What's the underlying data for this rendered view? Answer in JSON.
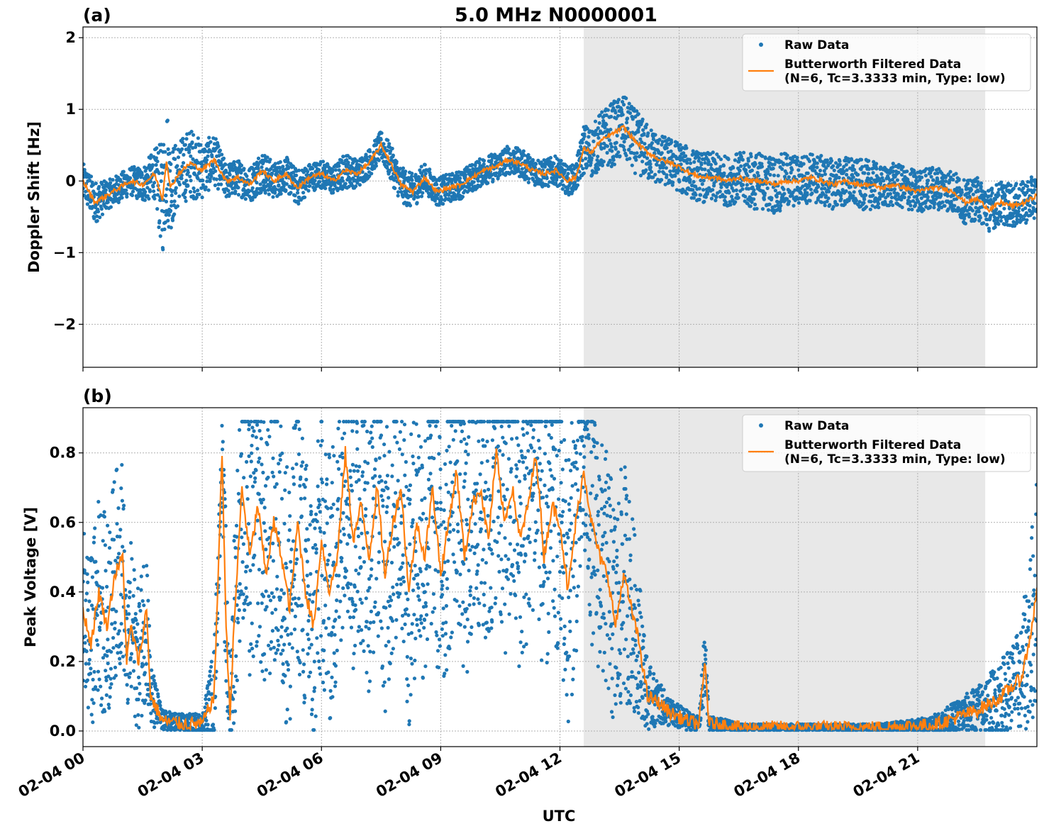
{
  "figure": {
    "title": "5.0 MHz N0000001",
    "xlabel": "UTC"
  },
  "colors": {
    "raw": "#1f77b4",
    "filtered": "#ff7f0e",
    "night_shade": "#e8e8e8",
    "grid": "#b0b0b0"
  },
  "legend": {
    "raw_label": "Raw Data",
    "filtered_label_line1": "Butterworth Filtered Data",
    "filtered_label_line2": "(N=6, Tc=3.3333 min, Type: low)"
  },
  "chart_data": [
    {
      "panel_label": "(a)",
      "type": "scatter",
      "ylabel": "Doppler Shift [Hz]",
      "xlim_hours": [
        0,
        24
      ],
      "ylim": [
        -2.6,
        2.15
      ],
      "yticks": [
        -2,
        -1,
        0,
        1,
        2
      ],
      "yticklabels": [
        "−2",
        "−1",
        "0",
        "1",
        "2"
      ],
      "xticks_hours": [
        0,
        3,
        6,
        9,
        12,
        15,
        18,
        21
      ],
      "xticklabels": [
        "02-04 00",
        "02-04 03",
        "02-04 06",
        "02-04 09",
        "02-04 12",
        "02-04 15",
        "02-04 18",
        "02-04 21"
      ],
      "grid": true,
      "legend_position": "top-right",
      "shaded_region_hours": [
        12.6,
        22.7
      ],
      "series": [
        {
          "name": "Butterworth Filtered Data (N=6, Tc=3.3333 min, Type: low)",
          "kind": "line",
          "x_hours": [
            0,
            0.3,
            0.6,
            0.9,
            1.2,
            1.5,
            1.8,
            2.0,
            2.1,
            2.2,
            2.4,
            2.7,
            3.0,
            3.3,
            3.6,
            3.9,
            4.2,
            4.5,
            4.8,
            5.1,
            5.4,
            5.7,
            6.0,
            6.3,
            6.6,
            6.9,
            7.2,
            7.5,
            7.7,
            8.0,
            8.3,
            8.6,
            8.9,
            9.2,
            9.5,
            9.8,
            10.1,
            10.4,
            10.7,
            11.0,
            11.3,
            11.6,
            11.9,
            12.2,
            12.4,
            12.6,
            12.8,
            13.0,
            13.3,
            13.6,
            13.9,
            14.2,
            14.5,
            14.8,
            15.0,
            15.3,
            15.6,
            15.9,
            16.2,
            16.5,
            16.8,
            17.1,
            17.4,
            17.7,
            18.0,
            18.3,
            18.6,
            18.9,
            19.2,
            19.5,
            19.8,
            20.1,
            20.4,
            20.7,
            21.0,
            21.3,
            21.6,
            21.9,
            22.2,
            22.5,
            22.8,
            23.1,
            23.4,
            23.7,
            24.0
          ],
          "y": [
            0.0,
            -0.3,
            -0.2,
            -0.1,
            0.0,
            -0.05,
            0.1,
            -0.25,
            0.3,
            -0.1,
            0.1,
            0.25,
            0.15,
            0.3,
            0.0,
            0.05,
            -0.05,
            0.15,
            0.0,
            0.1,
            -0.1,
            0.05,
            0.1,
            0.0,
            0.15,
            0.1,
            0.25,
            0.5,
            0.3,
            -0.05,
            -0.15,
            0.05,
            -0.15,
            -0.1,
            -0.05,
            0.05,
            0.15,
            0.2,
            0.3,
            0.25,
            0.15,
            0.1,
            0.15,
            0.0,
            0.05,
            0.45,
            0.4,
            0.55,
            0.65,
            0.75,
            0.55,
            0.4,
            0.3,
            0.25,
            0.2,
            0.1,
            0.05,
            0.05,
            0.0,
            0.05,
            0.0,
            0.0,
            -0.05,
            0.0,
            0.0,
            0.05,
            0.0,
            -0.05,
            0.0,
            -0.05,
            -0.05,
            -0.1,
            -0.05,
            -0.1,
            -0.15,
            -0.1,
            -0.1,
            -0.15,
            -0.3,
            -0.25,
            -0.4,
            -0.3,
            -0.35,
            -0.3,
            -0.2
          ]
        },
        {
          "name": "Raw Data",
          "kind": "band",
          "x_hours": [
            0,
            0.3,
            0.6,
            0.9,
            1.2,
            1.5,
            1.8,
            2.0,
            2.1,
            2.2,
            2.4,
            2.7,
            3.0,
            3.3,
            3.6,
            3.9,
            4.2,
            4.5,
            4.8,
            5.1,
            5.4,
            5.7,
            6.0,
            6.3,
            6.6,
            6.9,
            7.2,
            7.5,
            7.7,
            8.0,
            8.3,
            8.6,
            8.9,
            9.2,
            9.5,
            9.8,
            10.1,
            10.4,
            10.7,
            11.0,
            11.3,
            11.6,
            11.9,
            12.2,
            12.4,
            12.6,
            12.8,
            13.0,
            13.3,
            13.6,
            13.9,
            14.2,
            14.5,
            14.8,
            15.0,
            15.3,
            15.6,
            15.9,
            16.2,
            16.5,
            16.8,
            17.1,
            17.4,
            17.7,
            18.0,
            18.3,
            18.6,
            18.9,
            19.2,
            19.5,
            19.8,
            20.1,
            20.4,
            20.7,
            21.0,
            21.3,
            21.6,
            21.9,
            22.2,
            22.5,
            22.8,
            23.1,
            23.4,
            23.7,
            24.0
          ],
          "spread": [
            0.25,
            0.3,
            0.2,
            0.2,
            0.2,
            0.25,
            0.35,
            0.8,
            0.9,
            0.6,
            0.45,
            0.5,
            0.4,
            0.35,
            0.25,
            0.25,
            0.25,
            0.3,
            0.25,
            0.25,
            0.25,
            0.2,
            0.2,
            0.2,
            0.25,
            0.2,
            0.2,
            0.2,
            0.25,
            0.25,
            0.25,
            0.2,
            0.2,
            0.2,
            0.2,
            0.2,
            0.2,
            0.2,
            0.2,
            0.2,
            0.2,
            0.2,
            0.2,
            0.2,
            0.2,
            0.35,
            0.35,
            0.4,
            0.45,
            0.45,
            0.45,
            0.4,
            0.35,
            0.35,
            0.35,
            0.35,
            0.35,
            0.35,
            0.35,
            0.35,
            0.4,
            0.4,
            0.4,
            0.4,
            0.35,
            0.35,
            0.35,
            0.35,
            0.35,
            0.35,
            0.35,
            0.3,
            0.3,
            0.3,
            0.3,
            0.3,
            0.3,
            0.3,
            0.3,
            0.3,
            0.3,
            0.3,
            0.3,
            0.3,
            0.3
          ]
        }
      ]
    },
    {
      "panel_label": "(b)",
      "type": "scatter",
      "ylabel": "Peak Voltage [V]",
      "xlim_hours": [
        0,
        24
      ],
      "ylim": [
        -0.045,
        0.93
      ],
      "yticks": [
        0.0,
        0.2,
        0.4,
        0.6,
        0.8
      ],
      "yticklabels": [
        "0.0",
        "0.2",
        "0.4",
        "0.6",
        "0.8"
      ],
      "xticks_hours": [
        0,
        3,
        6,
        9,
        12,
        15,
        18,
        21
      ],
      "xticklabels": [
        "02-04 00",
        "02-04 03",
        "02-04 06",
        "02-04 09",
        "02-04 12",
        "02-04 15",
        "02-04 18",
        "02-04 21"
      ],
      "grid": true,
      "legend_position": "top-right",
      "shaded_region_hours": [
        12.6,
        22.7
      ],
      "series": [
        {
          "name": "Butterworth Filtered Data (N=6, Tc=3.3333 min, Type: low)",
          "kind": "line",
          "x_hours": [
            0,
            0.2,
            0.4,
            0.6,
            0.8,
            1.0,
            1.1,
            1.2,
            1.4,
            1.6,
            1.7,
            2.0,
            2.5,
            3.0,
            3.3,
            3.5,
            3.6,
            3.7,
            3.8,
            4.0,
            4.2,
            4.4,
            4.6,
            4.8,
            5.0,
            5.2,
            5.4,
            5.6,
            5.8,
            6.0,
            6.2,
            6.4,
            6.6,
            6.8,
            7.0,
            7.2,
            7.4,
            7.6,
            7.8,
            8.0,
            8.2,
            8.4,
            8.6,
            8.8,
            9.0,
            9.2,
            9.4,
            9.6,
            9.8,
            10.0,
            10.2,
            10.4,
            10.6,
            10.8,
            11.0,
            11.2,
            11.4,
            11.6,
            11.8,
            12.0,
            12.2,
            12.4,
            12.6,
            12.8,
            13.0,
            13.2,
            13.4,
            13.6,
            13.8,
            14.0,
            14.2,
            14.5,
            14.8,
            15.2,
            15.5,
            15.65,
            15.75,
            16.0,
            16.5,
            17.0,
            18.0,
            19.0,
            20.0,
            21.0,
            21.5,
            22.0,
            22.5,
            23.0,
            23.3,
            23.6,
            23.8,
            24.0
          ],
          "y": [
            0.35,
            0.25,
            0.4,
            0.3,
            0.45,
            0.5,
            0.2,
            0.3,
            0.2,
            0.35,
            0.1,
            0.03,
            0.02,
            0.02,
            0.1,
            0.8,
            0.3,
            0.05,
            0.3,
            0.7,
            0.5,
            0.65,
            0.45,
            0.6,
            0.5,
            0.35,
            0.6,
            0.4,
            0.3,
            0.55,
            0.4,
            0.5,
            0.8,
            0.55,
            0.65,
            0.5,
            0.7,
            0.45,
            0.6,
            0.7,
            0.4,
            0.6,
            0.5,
            0.7,
            0.45,
            0.6,
            0.75,
            0.5,
            0.65,
            0.7,
            0.55,
            0.8,
            0.6,
            0.7,
            0.55,
            0.65,
            0.8,
            0.5,
            0.65,
            0.6,
            0.4,
            0.6,
            0.75,
            0.6,
            0.5,
            0.45,
            0.3,
            0.45,
            0.35,
            0.25,
            0.1,
            0.08,
            0.05,
            0.03,
            0.02,
            0.2,
            0.02,
            0.02,
            0.01,
            0.01,
            0.01,
            0.01,
            0.01,
            0.015,
            0.02,
            0.04,
            0.06,
            0.09,
            0.12,
            0.15,
            0.25,
            0.4
          ]
        },
        {
          "name": "Raw Data",
          "kind": "band",
          "x_hours": [
            0,
            0.2,
            0.4,
            0.6,
            0.8,
            1.0,
            1.1,
            1.2,
            1.4,
            1.6,
            1.7,
            2.0,
            2.5,
            3.0,
            3.3,
            3.5,
            3.6,
            3.7,
            3.8,
            4.0,
            4.2,
            4.4,
            4.6,
            4.8,
            5.0,
            5.2,
            5.4,
            5.6,
            5.8,
            6.0,
            6.2,
            6.4,
            6.6,
            6.8,
            7.0,
            7.2,
            7.4,
            7.6,
            7.8,
            8.0,
            8.2,
            8.4,
            8.6,
            8.8,
            9.0,
            9.2,
            9.4,
            9.6,
            9.8,
            10.0,
            10.2,
            10.4,
            10.6,
            10.8,
            11.0,
            11.2,
            11.4,
            11.6,
            11.8,
            12.0,
            12.2,
            12.4,
            12.6,
            12.8,
            13.0,
            13.2,
            13.4,
            13.6,
            13.8,
            14.0,
            14.2,
            14.5,
            14.8,
            15.2,
            15.5,
            15.65,
            15.75,
            16.0,
            16.5,
            17.0,
            18.0,
            19.0,
            20.0,
            21.0,
            21.5,
            22.0,
            22.5,
            23.0,
            23.3,
            23.6,
            23.8,
            24.0
          ],
          "spread": [
            0.25,
            0.25,
            0.3,
            0.3,
            0.3,
            0.3,
            0.15,
            0.25,
            0.2,
            0.25,
            0.1,
            0.03,
            0.03,
            0.03,
            0.15,
            0.1,
            0.3,
            0.1,
            0.3,
            0.35,
            0.4,
            0.4,
            0.4,
            0.4,
            0.4,
            0.4,
            0.4,
            0.4,
            0.4,
            0.4,
            0.4,
            0.4,
            0.4,
            0.4,
            0.4,
            0.4,
            0.4,
            0.4,
            0.4,
            0.4,
            0.4,
            0.4,
            0.4,
            0.4,
            0.4,
            0.4,
            0.4,
            0.4,
            0.4,
            0.4,
            0.4,
            0.4,
            0.4,
            0.4,
            0.4,
            0.4,
            0.4,
            0.4,
            0.4,
            0.4,
            0.4,
            0.4,
            0.25,
            0.35,
            0.35,
            0.35,
            0.35,
            0.35,
            0.3,
            0.2,
            0.1,
            0.06,
            0.04,
            0.03,
            0.02,
            0.12,
            0.02,
            0.02,
            0.01,
            0.01,
            0.01,
            0.01,
            0.01,
            0.02,
            0.03,
            0.05,
            0.07,
            0.1,
            0.12,
            0.15,
            0.25,
            0.35
          ]
        }
      ]
    }
  ]
}
